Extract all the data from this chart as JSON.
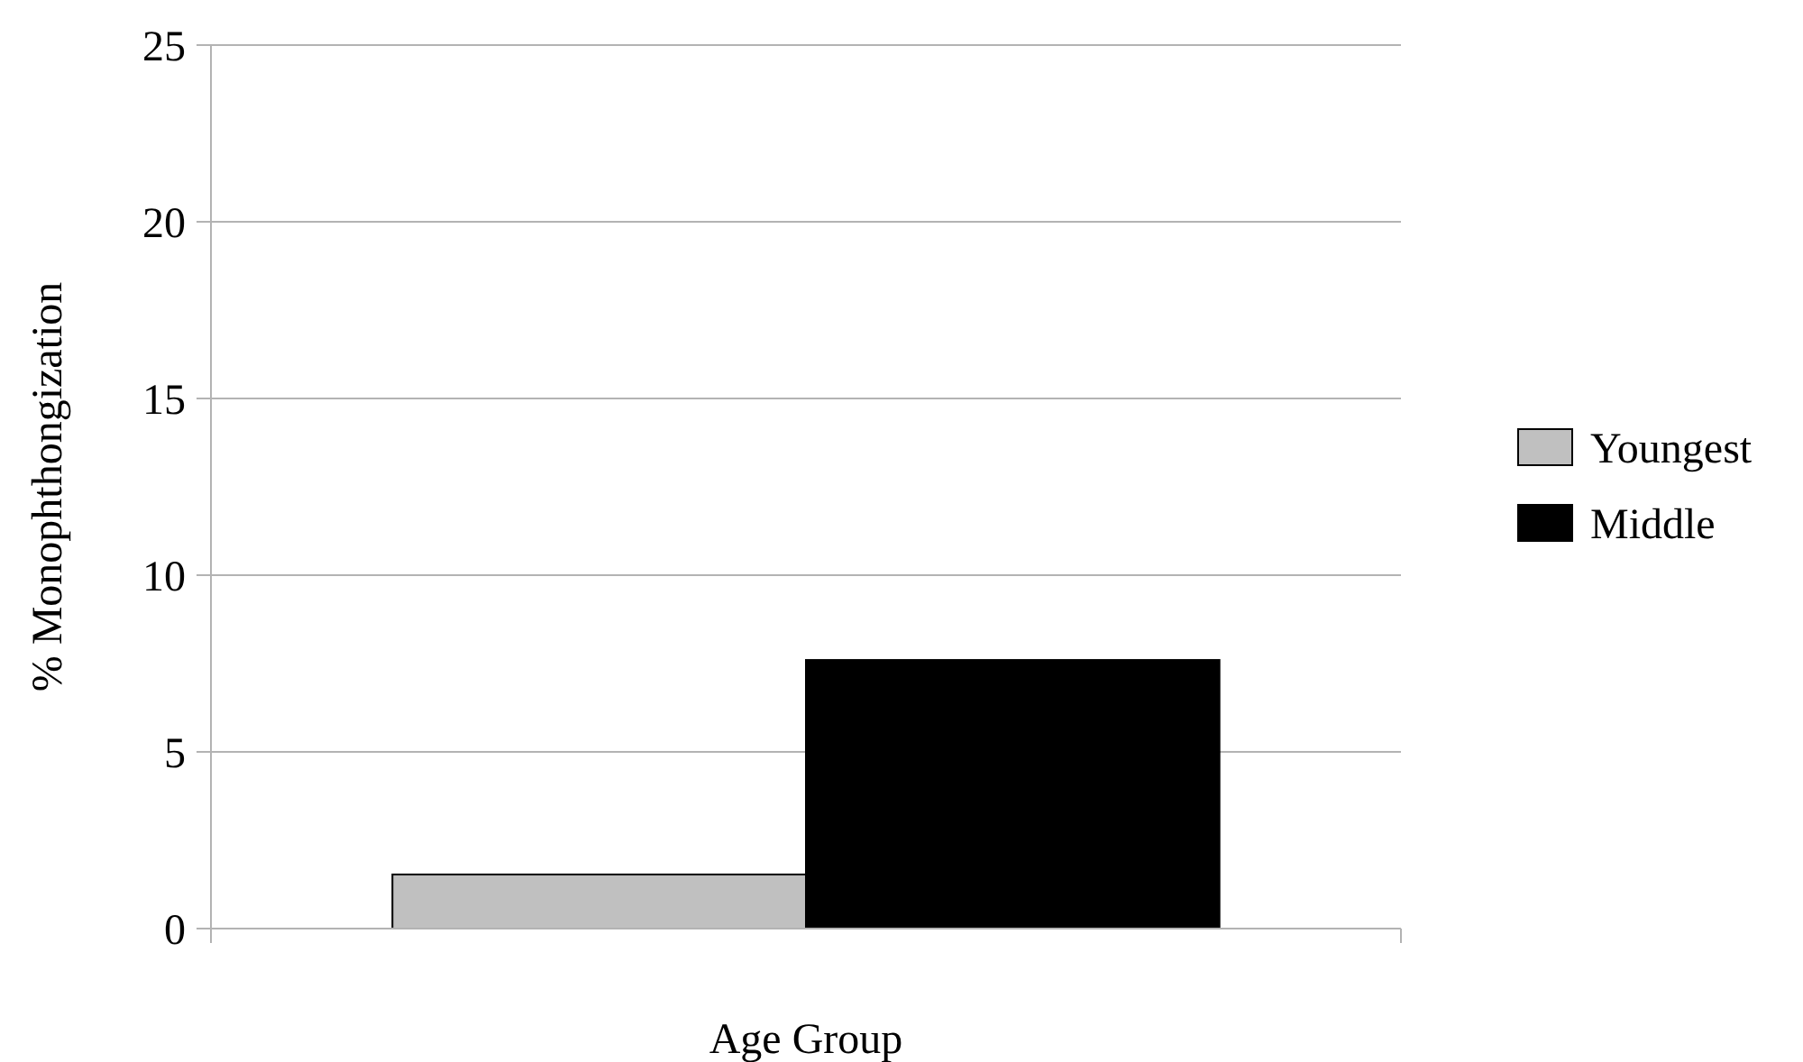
{
  "chart_data": {
    "type": "bar",
    "xlabel": "Age Group",
    "ylabel": "% Monophthongization",
    "categories": [
      null
    ],
    "series": [
      {
        "name": "Youngest",
        "color": "#c0c0c0",
        "values": [
          1.53
        ]
      },
      {
        "name": "Middle",
        "color": "#000000",
        "values": [
          7.6
        ]
      }
    ],
    "ylim": [
      0,
      25
    ],
    "yticks": [
      0,
      5,
      10,
      15,
      20,
      25
    ],
    "grid": "y",
    "legend": "right"
  }
}
